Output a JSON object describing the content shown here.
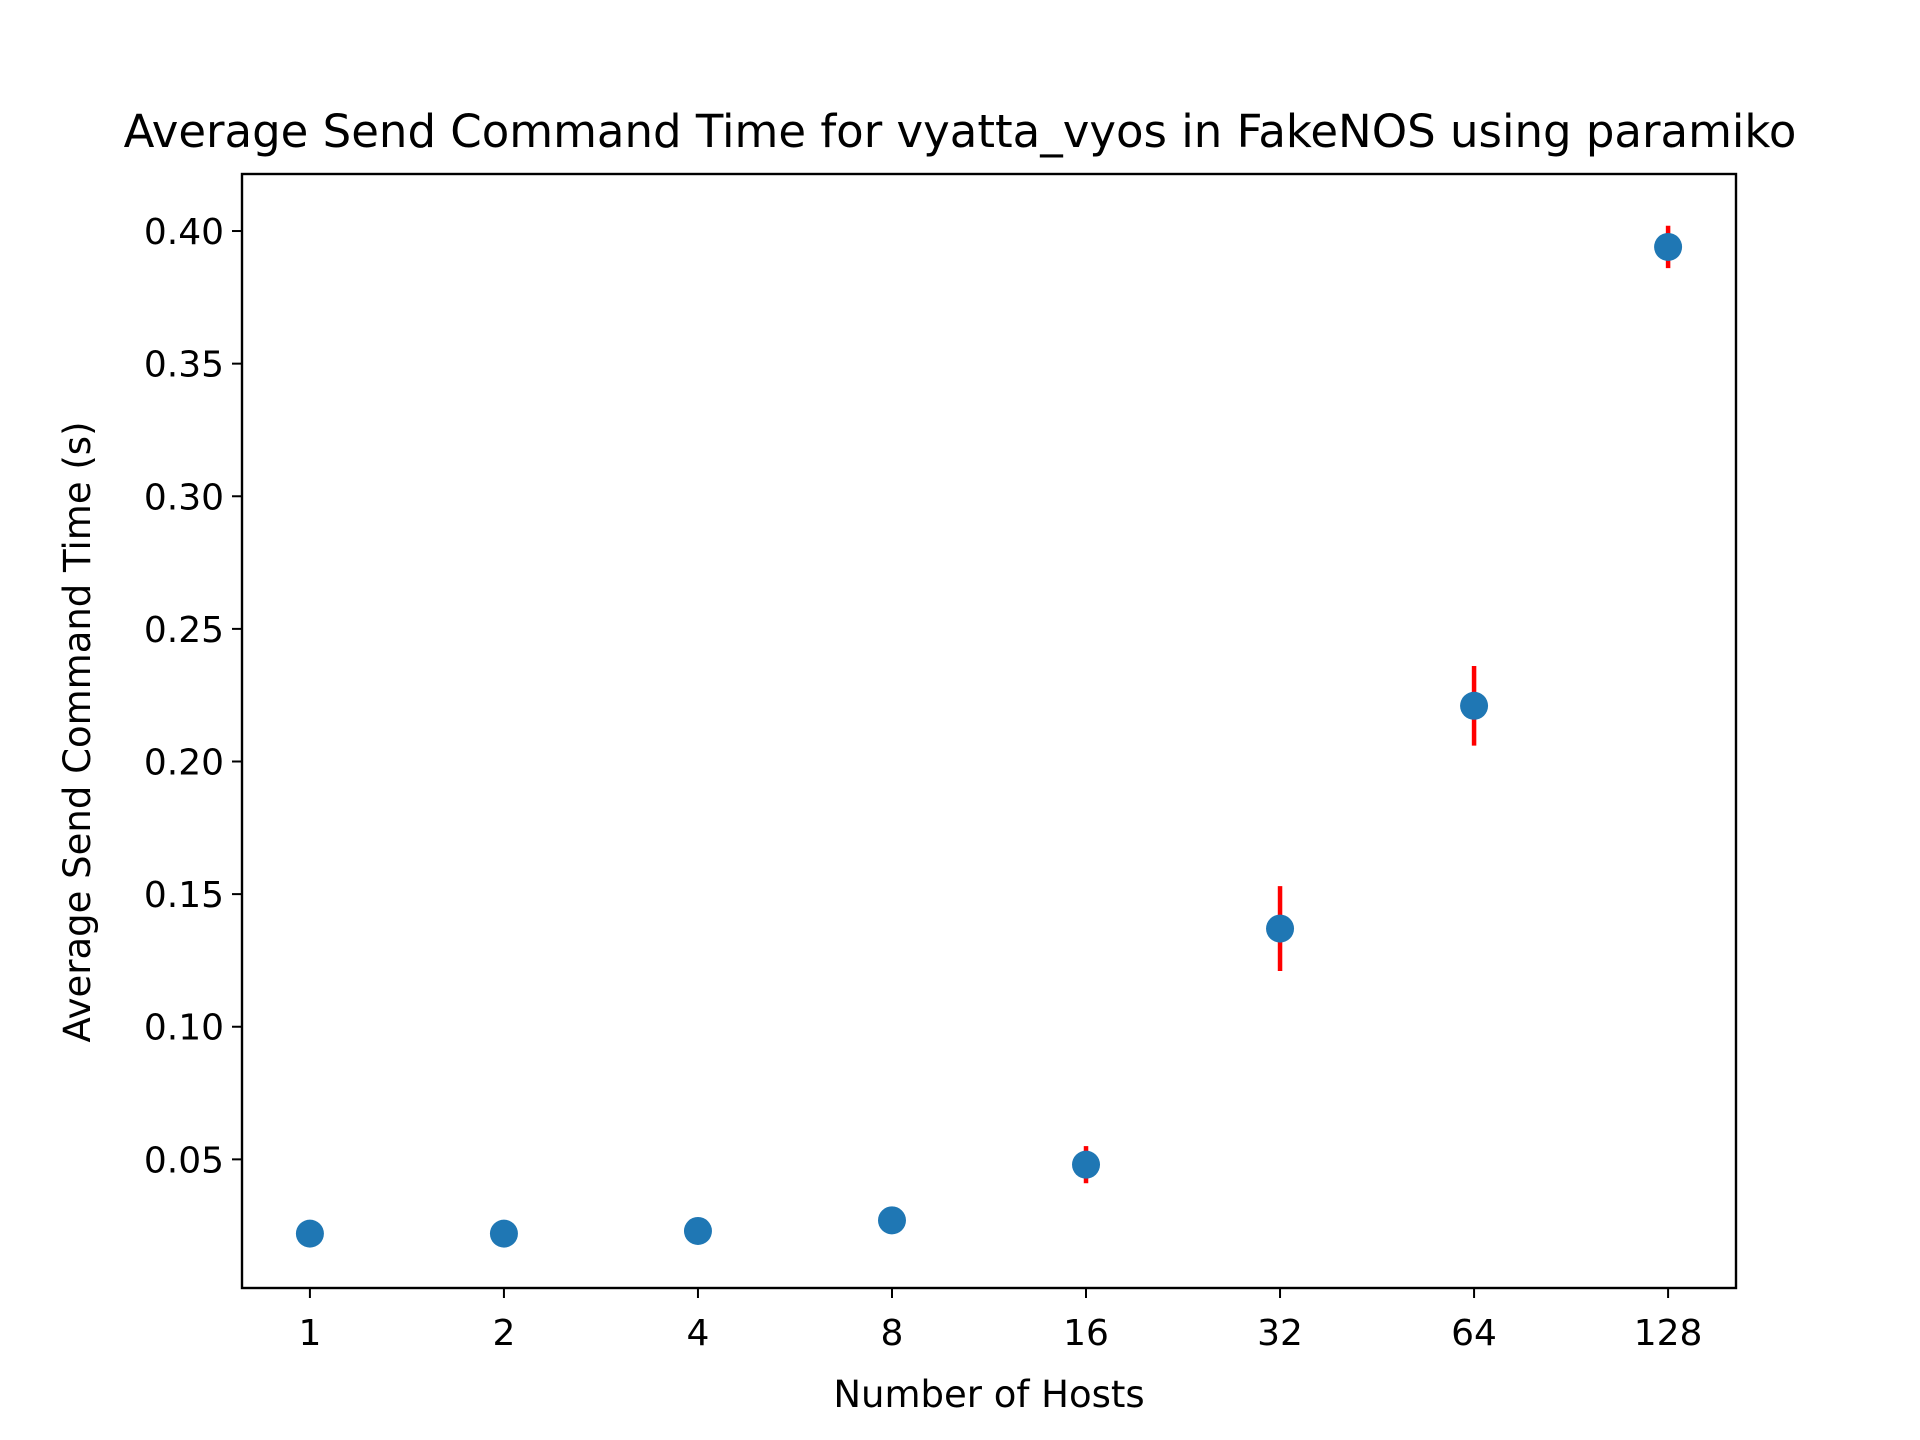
{
  "chart_data": {
    "type": "scatter",
    "title": "Average Send Command Time for vyatta_vyos in FakeNOS using paramiko",
    "xlabel": "Number of Hosts",
    "ylabel": "Average Send Command Time (s)",
    "x_scale": "log2",
    "x": [
      1,
      2,
      4,
      8,
      16,
      32,
      64,
      128
    ],
    "x_tick_labels": [
      "1",
      "2",
      "4",
      "8",
      "16",
      "32",
      "64",
      "128"
    ],
    "y": [
      0.022,
      0.022,
      0.023,
      0.027,
      0.048,
      0.137,
      0.221,
      0.394
    ],
    "yerr": [
      0.001,
      0.001,
      0.001,
      0.001,
      0.007,
      0.016,
      0.015,
      0.008
    ],
    "ylim": [
      0.0015,
      0.4215
    ],
    "y_ticks": [
      0.05,
      0.1,
      0.15,
      0.2,
      0.25,
      0.3,
      0.35,
      0.4
    ],
    "y_tick_labels": [
      "0.05",
      "0.10",
      "0.15",
      "0.20",
      "0.25",
      "0.30",
      "0.35",
      "0.40"
    ],
    "grid": false,
    "colors": {
      "marker": "#1f77b4",
      "errorbar": "#ff0000",
      "axes": "#000000"
    }
  }
}
